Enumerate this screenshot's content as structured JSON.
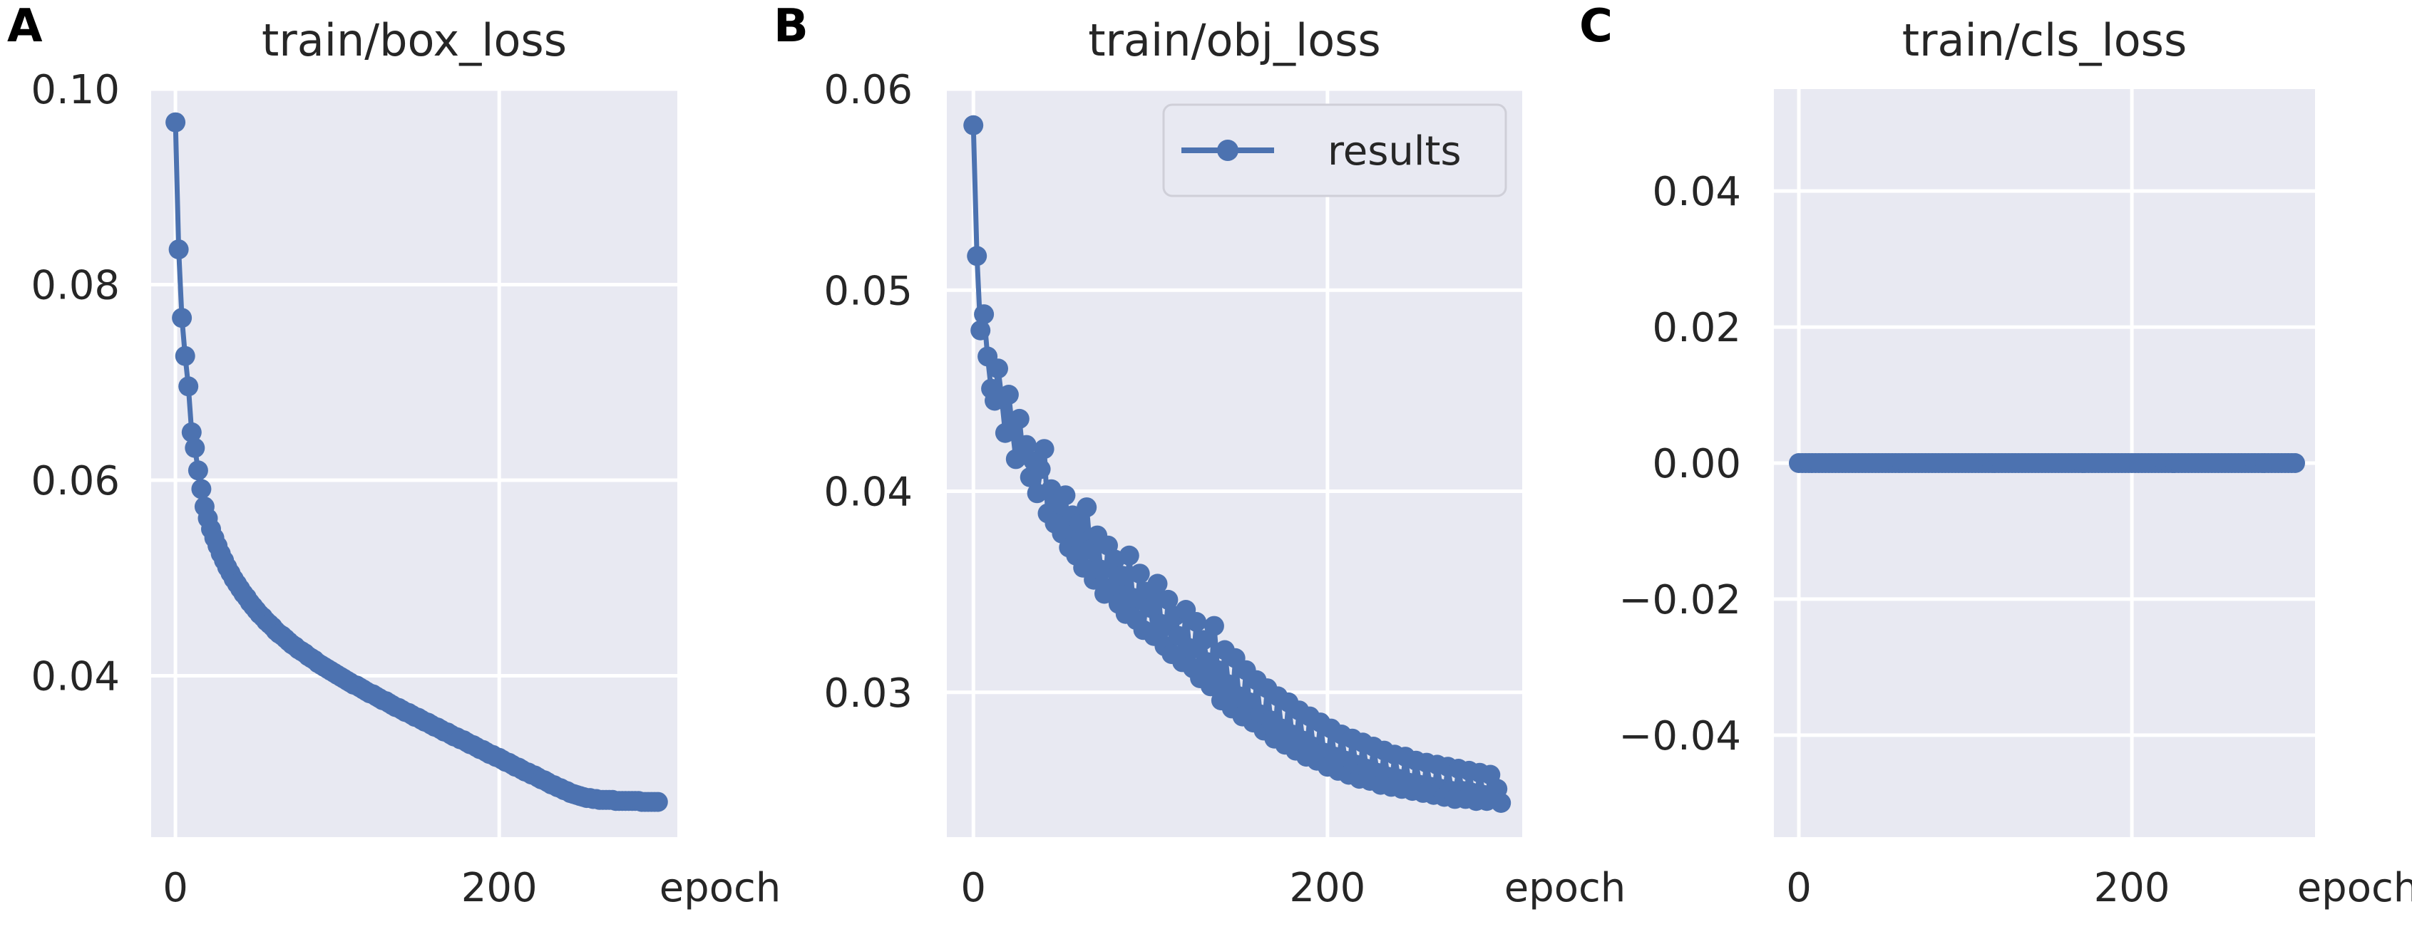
{
  "series_color": "#4c72b0",
  "chart_data": [
    {
      "panel_label": "A",
      "type": "line",
      "title": "train/box_loss",
      "xlabel": "epoch",
      "xlim": [
        -15,
        310
      ],
      "ylim": [
        0.0235,
        0.1
      ],
      "xticks": [
        0,
        200
      ],
      "xtick_labels": [
        "0",
        "200"
      ],
      "yticks": [
        0.04,
        0.06,
        0.08,
        0.1
      ],
      "ytick_labels": [
        "0.04",
        "0.06",
        "0.08",
        "0.10"
      ],
      "series": [
        {
          "x": [
            0,
            2,
            4,
            6,
            8,
            10,
            12,
            14,
            16,
            18,
            20,
            22,
            24,
            26,
            28,
            30,
            32,
            34,
            36,
            38,
            40,
            42,
            44,
            46,
            48,
            50,
            52,
            54,
            56,
            58,
            60,
            62,
            64,
            66,
            68,
            70,
            72,
            74,
            76,
            78,
            80,
            82,
            84,
            86,
            88,
            90,
            92,
            94,
            96,
            98,
            100,
            102,
            104,
            106,
            108,
            110,
            112,
            114,
            116,
            118,
            120,
            122,
            124,
            126,
            128,
            130,
            132,
            134,
            136,
            138,
            140,
            142,
            144,
            146,
            148,
            150,
            152,
            154,
            156,
            158,
            160,
            162,
            164,
            166,
            168,
            170,
            172,
            174,
            176,
            178,
            180,
            182,
            184,
            186,
            188,
            190,
            192,
            194,
            196,
            198,
            200,
            202,
            204,
            206,
            208,
            210,
            212,
            214,
            216,
            218,
            220,
            222,
            224,
            226,
            228,
            230,
            232,
            234,
            236,
            238,
            240,
            242,
            244,
            246,
            248,
            250,
            252,
            254,
            256,
            258,
            260,
            262,
            264,
            266,
            268,
            270,
            272,
            274,
            276,
            278,
            280,
            282,
            284,
            286,
            288,
            290,
            292,
            294,
            296,
            298
          ],
          "values": [
            0.0966,
            0.0836,
            0.0766,
            0.0727,
            0.0696,
            0.0649,
            0.0633,
            0.061,
            0.0591,
            0.0573,
            0.0561,
            0.055,
            0.0541,
            0.0533,
            0.0525,
            0.0518,
            0.0511,
            0.0505,
            0.0499,
            0.0494,
            0.0489,
            0.0484,
            0.048,
            0.0475,
            0.0471,
            0.0467,
            0.0463,
            0.046,
            0.0456,
            0.0453,
            0.045,
            0.0446,
            0.0443,
            0.0441,
            0.0438,
            0.0435,
            0.0432,
            0.043,
            0.0427,
            0.0425,
            0.0423,
            0.042,
            0.0418,
            0.0416,
            0.0413,
            0.0411,
            0.0409,
            0.0407,
            0.0405,
            0.0403,
            0.0401,
            0.0399,
            0.0397,
            0.0395,
            0.0393,
            0.0391,
            0.039,
            0.0388,
            0.0386,
            0.0384,
            0.0382,
            0.0381,
            0.0379,
            0.0377,
            0.0375,
            0.0374,
            0.0372,
            0.037,
            0.0368,
            0.0367,
            0.0365,
            0.0363,
            0.0362,
            0.036,
            0.0358,
            0.0357,
            0.0355,
            0.0353,
            0.0352,
            0.035,
            0.0348,
            0.0347,
            0.0345,
            0.0343,
            0.0342,
            0.034,
            0.0338,
            0.0337,
            0.0335,
            0.0334,
            0.0332,
            0.033,
            0.0329,
            0.0327,
            0.0325,
            0.0324,
            0.0322,
            0.032,
            0.0319,
            0.0317,
            0.0316,
            0.0314,
            0.0312,
            0.0311,
            0.0309,
            0.0307,
            0.0306,
            0.0304,
            0.0302,
            0.0301,
            0.0299,
            0.0298,
            0.0296,
            0.0294,
            0.0293,
            0.0291,
            0.0289,
            0.0288,
            0.0286,
            0.0285,
            0.0283,
            0.0282,
            0.028,
            0.0279,
            0.0278,
            0.0277,
            0.0276,
            0.0275,
            0.0275,
            0.0274,
            0.0274,
            0.0273,
            0.0273,
            0.0273,
            0.0273,
            0.0273,
            0.0272,
            0.0272,
            0.0272,
            0.0272,
            0.0272,
            0.0272,
            0.0272,
            0.0272,
            0.0271,
            0.0271,
            0.0271,
            0.0271,
            0.0271,
            0.0271
          ]
        }
      ]
    },
    {
      "panel_label": "B",
      "type": "line",
      "title": "train/obj_loss",
      "xlabel": "epoch",
      "xlim": [
        -15,
        310
      ],
      "ylim": [
        0.0228,
        0.06
      ],
      "xticks": [
        0,
        200
      ],
      "xtick_labels": [
        "0",
        "200"
      ],
      "yticks": [
        0.03,
        0.04,
        0.05,
        0.06
      ],
      "ytick_labels": [
        "0.03",
        "0.04",
        "0.05",
        "0.06"
      ],
      "legend": {
        "label": "results",
        "position": "top-right"
      },
      "series": [
        {
          "name": "results",
          "x": [
            0,
            2,
            4,
            6,
            8,
            10,
            12,
            14,
            16,
            18,
            20,
            22,
            24,
            26,
            28,
            30,
            32,
            34,
            36,
            38,
            40,
            42,
            44,
            46,
            48,
            50,
            52,
            54,
            56,
            58,
            60,
            62,
            64,
            66,
            68,
            70,
            72,
            74,
            76,
            78,
            80,
            82,
            84,
            86,
            88,
            90,
            92,
            94,
            96,
            98,
            100,
            102,
            104,
            106,
            108,
            110,
            112,
            114,
            116,
            118,
            120,
            122,
            124,
            126,
            128,
            130,
            132,
            134,
            136,
            138,
            140,
            142,
            144,
            146,
            148,
            150,
            152,
            154,
            156,
            158,
            160,
            162,
            164,
            166,
            168,
            170,
            172,
            174,
            176,
            178,
            180,
            182,
            184,
            186,
            188,
            190,
            192,
            194,
            196,
            198,
            200,
            202,
            204,
            206,
            208,
            210,
            212,
            214,
            216,
            218,
            220,
            222,
            224,
            226,
            228,
            230,
            232,
            234,
            236,
            238,
            240,
            242,
            244,
            246,
            248,
            250,
            252,
            254,
            256,
            258,
            260,
            262,
            264,
            266,
            268,
            270,
            272,
            274,
            276,
            278,
            280,
            282,
            284,
            286,
            288,
            290,
            292,
            294,
            296,
            298
          ],
          "values": [
            0.0582,
            0.0517,
            0.048,
            0.0488,
            0.0467,
            0.0451,
            0.0445,
            0.0461,
            0.0446,
            0.0429,
            0.0448,
            0.0431,
            0.0416,
            0.0436,
            0.0418,
            0.0423,
            0.0407,
            0.0415,
            0.0399,
            0.0411,
            0.0421,
            0.0389,
            0.0401,
            0.0384,
            0.0394,
            0.0379,
            0.0398,
            0.0372,
            0.0388,
            0.0368,
            0.0384,
            0.0362,
            0.0392,
            0.0371,
            0.0356,
            0.0378,
            0.0361,
            0.0349,
            0.0373,
            0.0352,
            0.0366,
            0.0344,
            0.0358,
            0.0339,
            0.0368,
            0.0347,
            0.0336,
            0.0359,
            0.0331,
            0.035,
            0.0342,
            0.0328,
            0.0354,
            0.0334,
            0.0323,
            0.0346,
            0.0319,
            0.0338,
            0.0328,
            0.0315,
            0.0341,
            0.0322,
            0.0312,
            0.0335,
            0.0307,
            0.0326,
            0.0315,
            0.0303,
            0.0333,
            0.0311,
            0.0296,
            0.0321,
            0.0304,
            0.0292,
            0.0317,
            0.0298,
            0.0288,
            0.0311,
            0.0295,
            0.0285,
            0.0306,
            0.0289,
            0.0281,
            0.0302,
            0.0286,
            0.0277,
            0.0298,
            0.0282,
            0.0274,
            0.0295,
            0.0279,
            0.0271,
            0.0291,
            0.0276,
            0.0268,
            0.0288,
            0.0273,
            0.0266,
            0.0285,
            0.027,
            0.0263,
            0.0282,
            0.0268,
            0.0261,
            0.0279,
            0.0266,
            0.0259,
            0.0277,
            0.0264,
            0.0257,
            0.0275,
            0.0262,
            0.0256,
            0.0273,
            0.026,
            0.0254,
            0.0271,
            0.0258,
            0.0253,
            0.0269,
            0.0257,
            0.0252,
            0.0268,
            0.0255,
            0.0251,
            0.0266,
            0.0254,
            0.025,
            0.0265,
            0.0253,
            0.0249,
            0.0264,
            0.0252,
            0.0248,
            0.0263,
            0.0251,
            0.0247,
            0.0262,
            0.0251,
            0.0247,
            0.0261,
            0.025,
            0.0246,
            0.026,
            0.0249,
            0.0246,
            0.0259,
            0.0249,
            0.0252,
            0.0245
          ]
        }
      ]
    },
    {
      "panel_label": "C",
      "type": "line",
      "title": "train/cls_loss",
      "xlabel": "epoch",
      "xlim": [
        -15,
        310
      ],
      "ylim": [
        -0.055,
        0.055
      ],
      "xticks": [
        0,
        200
      ],
      "xtick_labels": [
        "0",
        "200"
      ],
      "yticks": [
        -0.04,
        -0.02,
        0.0,
        0.02,
        0.04
      ],
      "ytick_labels": [
        "−0.04",
        "−0.02",
        "0.00",
        "0.02",
        "0.04"
      ],
      "series": [
        {
          "x": [
            0,
            2,
            4,
            6,
            8,
            10,
            12,
            14,
            16,
            18,
            20,
            22,
            24,
            26,
            28,
            30,
            32,
            34,
            36,
            38,
            40,
            42,
            44,
            46,
            48,
            50,
            52,
            54,
            56,
            58,
            60,
            62,
            64,
            66,
            68,
            70,
            72,
            74,
            76,
            78,
            80,
            82,
            84,
            86,
            88,
            90,
            92,
            94,
            96,
            98,
            100,
            102,
            104,
            106,
            108,
            110,
            112,
            114,
            116,
            118,
            120,
            122,
            124,
            126,
            128,
            130,
            132,
            134,
            136,
            138,
            140,
            142,
            144,
            146,
            148,
            150,
            152,
            154,
            156,
            158,
            160,
            162,
            164,
            166,
            168,
            170,
            172,
            174,
            176,
            178,
            180,
            182,
            184,
            186,
            188,
            190,
            192,
            194,
            196,
            198,
            200,
            202,
            204,
            206,
            208,
            210,
            212,
            214,
            216,
            218,
            220,
            222,
            224,
            226,
            228,
            230,
            232,
            234,
            236,
            238,
            240,
            242,
            244,
            246,
            248,
            250,
            252,
            254,
            256,
            258,
            260,
            262,
            264,
            266,
            268,
            270,
            272,
            274,
            276,
            278,
            280,
            282,
            284,
            286,
            288,
            290,
            292,
            294,
            296,
            298
          ],
          "values": [
            0,
            0,
            0,
            0,
            0,
            0,
            0,
            0,
            0,
            0,
            0,
            0,
            0,
            0,
            0,
            0,
            0,
            0,
            0,
            0,
            0,
            0,
            0,
            0,
            0,
            0,
            0,
            0,
            0,
            0,
            0,
            0,
            0,
            0,
            0,
            0,
            0,
            0,
            0,
            0,
            0,
            0,
            0,
            0,
            0,
            0,
            0,
            0,
            0,
            0,
            0,
            0,
            0,
            0,
            0,
            0,
            0,
            0,
            0,
            0,
            0,
            0,
            0,
            0,
            0,
            0,
            0,
            0,
            0,
            0,
            0,
            0,
            0,
            0,
            0,
            0,
            0,
            0,
            0,
            0,
            0,
            0,
            0,
            0,
            0,
            0,
            0,
            0,
            0,
            0,
            0,
            0,
            0,
            0,
            0,
            0,
            0,
            0,
            0,
            0,
            0,
            0,
            0,
            0,
            0,
            0,
            0,
            0,
            0,
            0,
            0,
            0,
            0,
            0,
            0,
            0,
            0,
            0,
            0,
            0,
            0,
            0,
            0,
            0,
            0,
            0,
            0,
            0,
            0,
            0,
            0,
            0,
            0,
            0,
            0,
            0,
            0,
            0,
            0,
            0,
            0,
            0,
            0,
            0,
            0,
            0,
            0,
            0,
            0,
            0
          ]
        }
      ]
    }
  ]
}
